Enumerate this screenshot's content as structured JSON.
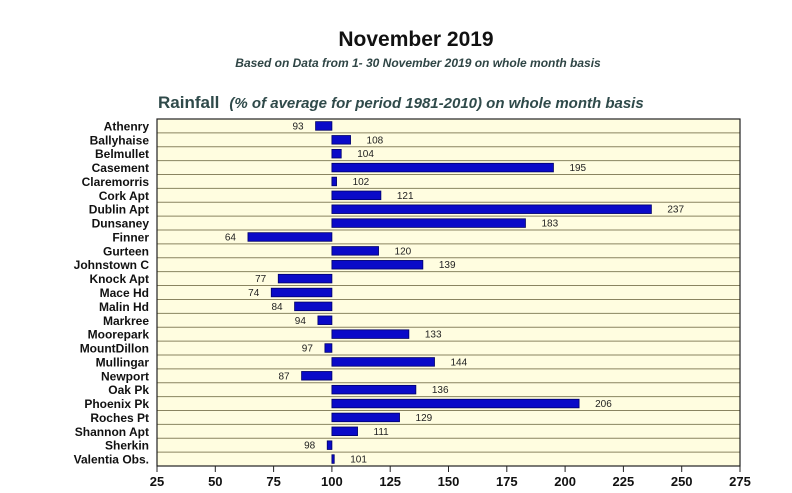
{
  "chart_data": {
    "type": "bar",
    "orientation": "horizontal",
    "title": "November 2019",
    "subtitle": "Based on Data from 1- 30 November 2019 on whole month basis",
    "heading": "Rainfall",
    "heading_note": "(% of average for period 1981-2010) on whole month basis",
    "xlabel": "",
    "ylabel": "",
    "xlim": [
      25,
      275
    ],
    "baseline": 100,
    "xticks": [
      25,
      50,
      75,
      100,
      125,
      150,
      175,
      200,
      225,
      250,
      275
    ],
    "categories": [
      "Athenry",
      "Ballyhaise",
      "Belmullet",
      "Casement",
      "Claremorris",
      "Cork Apt",
      "Dublin Apt",
      "Dunsaney",
      "Finner",
      "Gurteen",
      "Johnstown C",
      "Knock Apt",
      "Mace Hd",
      "Malin Hd",
      "Markree",
      "Moorepark",
      "MountDillon",
      "Mullingar",
      "Newport",
      "Oak Pk",
      "Phoenix Pk",
      "Roches Pt",
      "Shannon Apt",
      "Sherkin",
      "Valentia Obs."
    ],
    "values": [
      93,
      108,
      104,
      195,
      102,
      121,
      237,
      183,
      64,
      120,
      139,
      77,
      74,
      84,
      94,
      133,
      97,
      144,
      87,
      136,
      206,
      129,
      111,
      98,
      101
    ],
    "grid": false,
    "colors": {
      "bar": "#0a0ac8",
      "bar_edge": "#00006a",
      "plot_bg": "#fffde0",
      "row_line": "#8a8460",
      "heading": "#2f4a4a"
    }
  }
}
